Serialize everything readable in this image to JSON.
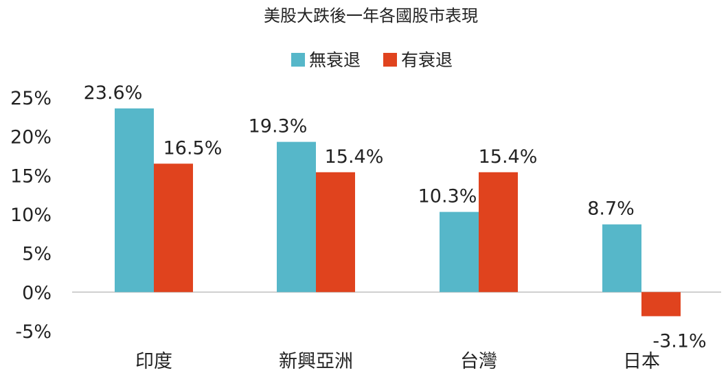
{
  "chart_data": {
    "type": "bar",
    "title": "美股大跌後一年各國股市表現",
    "categories": [
      "印度",
      "新興亞洲",
      "台灣",
      "日本"
    ],
    "series": [
      {
        "name": "無衰退",
        "color": "#56b7c9",
        "values": [
          23.6,
          19.3,
          10.3,
          8.7
        ],
        "labels": [
          "23.6%",
          "19.3%",
          "10.3%",
          "8.7%"
        ]
      },
      {
        "name": "有衰退",
        "color": "#e0431e",
        "values": [
          16.5,
          15.4,
          15.4,
          -3.1
        ],
        "labels": [
          "16.5%",
          "15.4%",
          "15.4%",
          "-3.1%"
        ]
      }
    ],
    "yticks": [
      "25%",
      "20%",
      "15%",
      "10%",
      "5%",
      "0%",
      "-5%"
    ],
    "ylim": [
      -5,
      25
    ],
    "xlabel": "",
    "ylabel": "",
    "legend_position": "top",
    "grid": false,
    "zero_line_color": "#bfbfbf"
  }
}
